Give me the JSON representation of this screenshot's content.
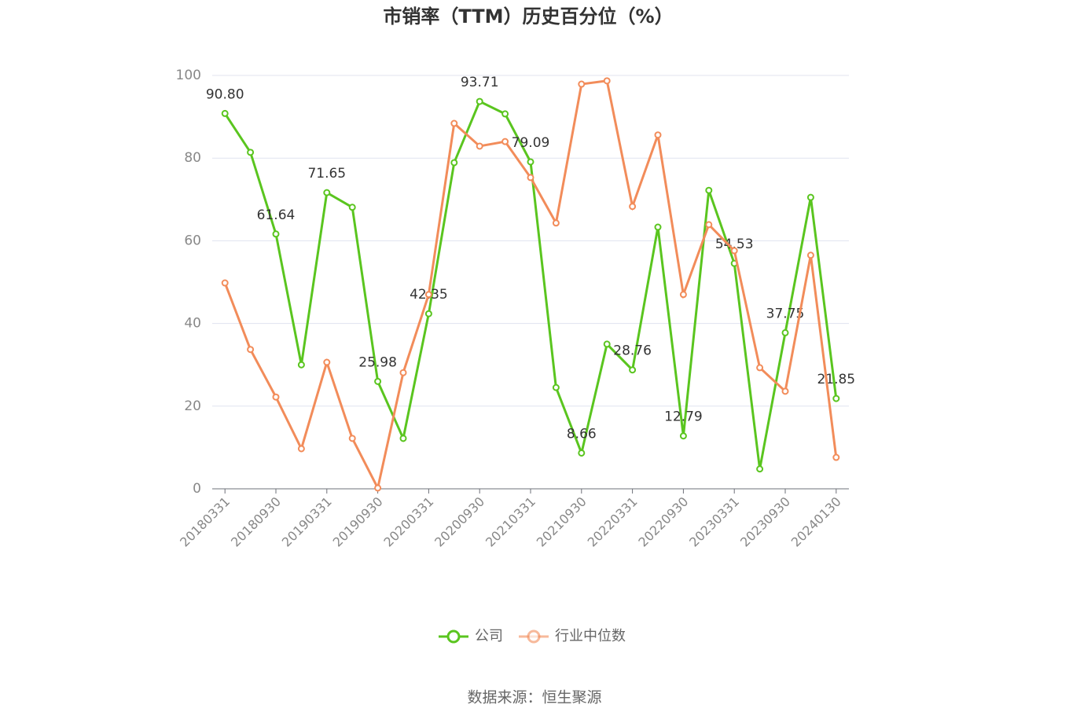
{
  "chart_data": {
    "type": "line",
    "title": "市销率（TTM）历史百分位（%）",
    "categories": [
      "20180331",
      null,
      "20180930",
      null,
      "20190331",
      null,
      "20190930",
      null,
      "20200331",
      null,
      "20200930",
      null,
      "20210331",
      null,
      "20210930",
      null,
      "20220331",
      null,
      "20220930",
      null,
      "20230331",
      null,
      "20230930",
      null,
      "20240130"
    ],
    "series": [
      {
        "name": "公司",
        "color": "#5ac51f",
        "values": [
          90.8,
          81.4,
          61.64,
          30.0,
          71.65,
          68.1,
          25.98,
          12.2,
          42.35,
          78.9,
          93.71,
          90.7,
          79.09,
          24.5,
          8.66,
          35.0,
          28.76,
          63.3,
          12.79,
          72.2,
          54.53,
          4.8,
          37.75,
          70.5,
          21.85
        ],
        "value_labels": [
          "90.80",
          null,
          "61.64",
          null,
          "71.65",
          null,
          "25.98",
          null,
          "42.35",
          null,
          "93.71",
          null,
          "79.09",
          null,
          "8.66",
          null,
          "28.76",
          null,
          "12.79",
          null,
          "54.53",
          null,
          "37.75",
          null,
          "21.85"
        ]
      },
      {
        "name": "行业中位数",
        "color": "#f28c5a",
        "values": [
          49.8,
          33.7,
          22.2,
          9.7,
          30.6,
          12.2,
          0.2,
          28.1,
          47.0,
          88.4,
          82.9,
          84.0,
          75.3,
          64.3,
          97.9,
          98.7,
          68.3,
          85.6,
          47.0,
          63.9,
          57.6,
          29.3,
          23.6,
          56.5,
          7.6
        ]
      }
    ],
    "ylim": [
      0,
      100
    ],
    "yticks": [
      0,
      20,
      40,
      60,
      80,
      100
    ],
    "grid": true,
    "legend": "bottom",
    "source": "数据来源：恒生聚源"
  }
}
